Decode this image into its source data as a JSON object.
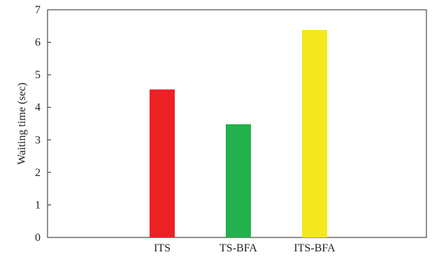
{
  "chart_data": {
    "type": "bar",
    "title": "",
    "xlabel": "",
    "ylabel": "Waiting time (sec)",
    "categories": [
      "ITS",
      "TS-BFA",
      "ITS-BFA"
    ],
    "values": [
      4.55,
      3.48,
      6.38
    ],
    "colors": [
      "#ed2024",
      "#22b14c",
      "#f2e81c"
    ],
    "ylim": [
      0,
      7
    ],
    "yticks": [
      "0",
      "1",
      "2",
      "3",
      "4",
      "5",
      "6",
      "7"
    ],
    "grid": false,
    "legend": "none"
  }
}
